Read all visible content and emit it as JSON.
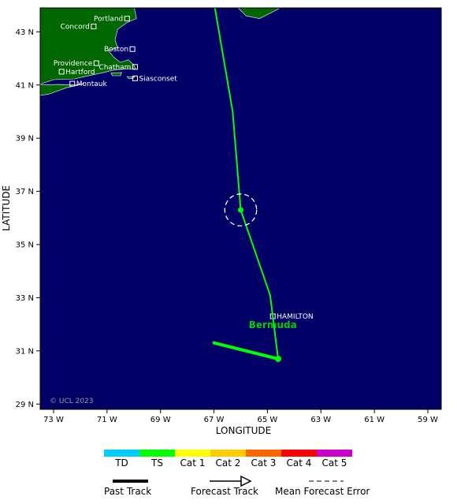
{
  "map": {
    "xlabel": "LONGITUDE",
    "ylabel": "LATITUDE",
    "copyright": "© UCL 2023",
    "region_label": "Bermuda",
    "lat_ticks": [
      "43 N",
      "41 N",
      "39 N",
      "37 N",
      "35 N",
      "33 N",
      "31 N",
      "29 N"
    ],
    "lon_ticks": [
      "73 W",
      "71 W",
      "69 W",
      "67 W",
      "65 W",
      "63 W",
      "61 W",
      "59 W"
    ],
    "lat_range": [
      28.8,
      43.9
    ],
    "lon_range": [
      73.5,
      58.5
    ],
    "colors": {
      "ocean": "#000066",
      "land": "#006600",
      "track_ts": "#00ff00",
      "error_circle": "#ffffff",
      "region_label": "#00cc00"
    },
    "cities": [
      {
        "name": "Portland",
        "lat": 43.5,
        "lon": 70.25,
        "label_side": "left"
      },
      {
        "name": "Concord",
        "lat": 43.2,
        "lon": 71.5,
        "label_side": "left"
      },
      {
        "name": "Boston",
        "lat": 42.35,
        "lon": 70.05,
        "label_side": "left"
      },
      {
        "name": "Providence",
        "lat": 41.82,
        "lon": 71.4,
        "label_side": "left"
      },
      {
        "name": "Chatham",
        "lat": 41.68,
        "lon": 69.95,
        "label_side": "left"
      },
      {
        "name": "Hartford",
        "lat": 41.5,
        "lon": 72.7,
        "label_side": "right"
      },
      {
        "name": "Siasconset",
        "lat": 41.25,
        "lon": 69.95,
        "label_side": "right"
      },
      {
        "name": "Montauk",
        "lat": 41.05,
        "lon": 72.3,
        "label_side": "right"
      },
      {
        "name": "HAMILTON",
        "lat": 32.3,
        "lon": 64.8,
        "label_side": "right"
      }
    ],
    "past_track": [
      [
        31.3,
        67.0
      ],
      [
        30.7,
        64.6
      ]
    ],
    "forecast_track": [
      [
        30.7,
        64.6
      ],
      [
        33.1,
        64.9
      ],
      [
        36.3,
        66.0
      ],
      [
        40.0,
        66.3
      ],
      [
        44.1,
        67.0
      ]
    ],
    "storm_position": {
      "lat": 36.3,
      "lon": 66.0
    },
    "error_circle_radius_deg": 0.6
  },
  "legend": {
    "categories": [
      {
        "label": "TD",
        "color": "#00ccff"
      },
      {
        "label": "TS",
        "color": "#00ff00"
      },
      {
        "label": "Cat 1",
        "color": "#ffff00"
      },
      {
        "label": "Cat 2",
        "color": "#ffcc00"
      },
      {
        "label": "Cat 3",
        "color": "#ff6600"
      },
      {
        "label": "Cat 4",
        "color": "#ff0000"
      },
      {
        "label": "Cat 5",
        "color": "#cc00cc"
      }
    ],
    "past_track_label": "Past Track",
    "forecast_track_label": "Forecast Track",
    "mean_error_label": "Mean Forecast Error"
  }
}
